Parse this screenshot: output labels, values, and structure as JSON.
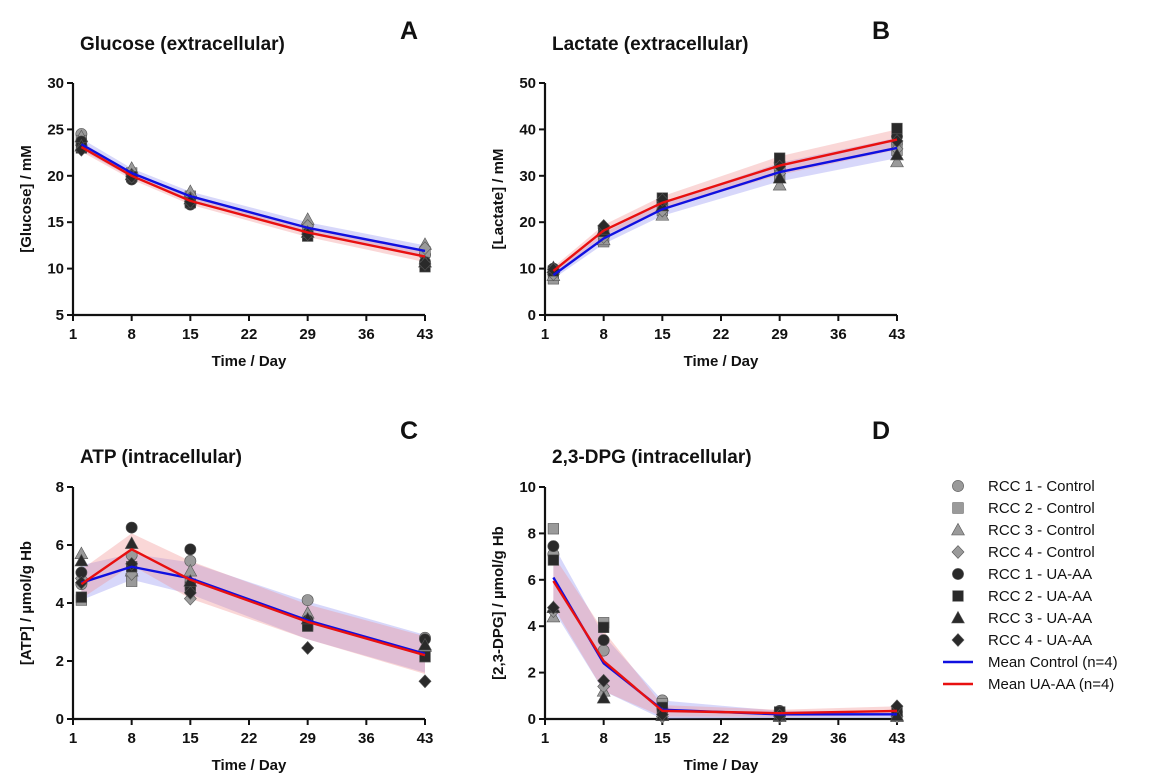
{
  "colors": {
    "control_marker": "#9a9a9a",
    "uaaa_marker": "#2a2a2a",
    "mean_control": "#1010e0",
    "mean_uaaa": "#e81010",
    "band_control": "#8c8cf2",
    "band_uaaa": "#f28c8c"
  },
  "legend": {
    "placement": "right",
    "items": [
      {
        "label": "RCC 1 - Control",
        "marker": "circle",
        "group": "control"
      },
      {
        "label": "RCC 2 - Control",
        "marker": "square",
        "group": "control"
      },
      {
        "label": "RCC 3 - Control",
        "marker": "triangle",
        "group": "control"
      },
      {
        "label": "RCC 4 - Control",
        "marker": "diamond",
        "group": "control"
      },
      {
        "label": "RCC 1 - UA-AA",
        "marker": "circle",
        "group": "uaaa"
      },
      {
        "label": "RCC 2 - UA-AA",
        "marker": "square",
        "group": "uaaa"
      },
      {
        "label": "RCC 3 - UA-AA",
        "marker": "triangle",
        "group": "uaaa"
      },
      {
        "label": "RCC 4 - UA-AA",
        "marker": "diamond",
        "group": "uaaa"
      },
      {
        "label": "Mean Control (n=4)",
        "marker": "line",
        "group": "mean_control"
      },
      {
        "label": "Mean UA-AA (n=4)",
        "marker": "line",
        "group": "mean_uaaa"
      }
    ]
  },
  "chart_data": [
    {
      "type": "line",
      "letter": "A",
      "title": "Glucose (extracellular)",
      "xlabel": "Time / Day",
      "ylabel": "[Glucose] / mM",
      "xlim": [
        1,
        43
      ],
      "xticks": [
        1,
        8,
        15,
        22,
        29,
        36,
        43
      ],
      "ylim": [
        5,
        30
      ],
      "yticks": [
        5,
        10,
        15,
        20,
        25,
        30
      ],
      "x": [
        2,
        8,
        15,
        29,
        43
      ],
      "series": [
        {
          "name": "RCC 1 - Control",
          "values": [
            24.5,
            19.7,
            17.5,
            14.0,
            11.5
          ]
        },
        {
          "name": "RCC 2 - Control",
          "values": [
            23.8,
            20.3,
            17.8,
            14.4,
            11.8
          ]
        },
        {
          "name": "RCC 3 - Control",
          "values": [
            24.2,
            20.8,
            18.3,
            15.3,
            12.6
          ]
        },
        {
          "name": "RCC 4 - Control",
          "values": [
            23.3,
            20.1,
            17.6,
            14.6,
            12.2
          ]
        },
        {
          "name": "RCC 1 - UA-AA",
          "values": [
            23.7,
            19.6,
            16.9,
            13.8,
            10.7
          ]
        },
        {
          "name": "RCC 2 - UA-AA",
          "values": [
            23.0,
            19.9,
            17.1,
            13.5,
            10.2
          ]
        },
        {
          "name": "RCC 3 - UA-AA",
          "values": [
            23.2,
            20.1,
            17.5,
            13.9,
            10.7
          ]
        },
        {
          "name": "RCC 4 - UA-AA",
          "values": [
            22.8,
            19.9,
            17.2,
            13.7,
            10.5
          ]
        },
        {
          "name": "Mean Control (n=4)",
          "values": [
            23.4,
            20.3,
            17.8,
            14.4,
            11.9
          ],
          "band": [
            0.6,
            0.5,
            0.5,
            0.6,
            0.6
          ]
        },
        {
          "name": "Mean UA-AA (n=4)",
          "values": [
            23.1,
            20.0,
            17.3,
            13.9,
            11.3
          ],
          "band": [
            0.5,
            0.4,
            0.4,
            0.5,
            0.6
          ]
        }
      ]
    },
    {
      "type": "line",
      "letter": "B",
      "title": "Lactate (extracellular)",
      "xlabel": "Time / Day",
      "ylabel": "[Lactate] / mM",
      "xlim": [
        1,
        43
      ],
      "xticks": [
        1,
        8,
        15,
        22,
        29,
        36,
        43
      ],
      "ylim": [
        0,
        50
      ],
      "yticks": [
        0,
        10,
        20,
        30,
        40,
        50
      ],
      "x": [
        2,
        8,
        15,
        29,
        43
      ],
      "series": [
        {
          "name": "RCC 1 - Control",
          "values": [
            9.0,
            17.5,
            23.8,
            31.5,
            37.0
          ]
        },
        {
          "name": "RCC 2 - Control",
          "values": [
            7.8,
            15.8,
            22.5,
            30.0,
            35.5
          ]
        },
        {
          "name": "RCC 3 - Control",
          "values": [
            8.5,
            16.2,
            21.5,
            28.0,
            33.0
          ]
        },
        {
          "name": "RCC 4 - Control",
          "values": [
            8.8,
            16.8,
            22.5,
            30.5,
            35.8
          ]
        },
        {
          "name": "RCC 1 - UA-AA",
          "values": [
            10.0,
            18.8,
            24.5,
            32.8,
            38.5
          ]
        },
        {
          "name": "RCC 2 - UA-AA",
          "values": [
            9.5,
            18.0,
            25.2,
            33.8,
            40.2
          ]
        },
        {
          "name": "RCC 3 - UA-AA",
          "values": [
            10.2,
            18.5,
            23.5,
            29.5,
            34.5
          ]
        },
        {
          "name": "RCC 4 - UA-AA",
          "values": [
            9.8,
            19.2,
            24.8,
            32.0,
            37.5
          ]
        },
        {
          "name": "Mean Control (n=4)",
          "values": [
            8.6,
            16.5,
            22.8,
            30.8,
            36.0
          ],
          "band": [
            0.8,
            1.2,
            1.4,
            2.0,
            2.2
          ]
        },
        {
          "name": "Mean UA-AA (n=4)",
          "values": [
            9.5,
            18.2,
            24.2,
            32.2,
            37.8
          ],
          "band": [
            0.8,
            1.2,
            1.4,
            2.0,
            2.2
          ]
        }
      ]
    },
    {
      "type": "line",
      "letter": "C",
      "title": "ATP (intracellular)",
      "xlabel": "Time / Day",
      "ylabel": "[ATP] /  µmol/g Hb",
      "xlim": [
        1,
        43
      ],
      "xticks": [
        1,
        8,
        15,
        22,
        29,
        36,
        43
      ],
      "ylim": [
        0,
        8
      ],
      "yticks": [
        0,
        2,
        4,
        6,
        8
      ],
      "x": [
        2,
        8,
        15,
        29,
        43
      ],
      "series": [
        {
          "name": "RCC 1 - Control",
          "values": [
            4.65,
            5.65,
            5.45,
            4.1,
            2.8
          ]
        },
        {
          "name": "RCC 2 - Control",
          "values": [
            4.1,
            4.75,
            4.65,
            3.25,
            2.15
          ]
        },
        {
          "name": "RCC 3 - Control",
          "values": [
            5.7,
            5.1,
            5.1,
            3.65,
            2.5
          ]
        },
        {
          "name": "RCC 4 - Control",
          "values": [
            4.85,
            5.0,
            4.15,
            2.45,
            1.3
          ]
        },
        {
          "name": "RCC 1 - UA-AA",
          "values": [
            5.05,
            6.6,
            5.85,
            3.4,
            2.75
          ]
        },
        {
          "name": "RCC 2 - UA-AA",
          "values": [
            4.2,
            5.25,
            4.55,
            3.2,
            2.15
          ]
        },
        {
          "name": "RCC 3 - UA-AA",
          "values": [
            5.45,
            6.05,
            4.75,
            3.45,
            2.55
          ]
        },
        {
          "name": "RCC 4 - UA-AA",
          "values": [
            4.7,
            5.35,
            4.35,
            2.45,
            1.3
          ]
        },
        {
          "name": "Mean Control (n=4)",
          "values": [
            4.7,
            5.25,
            4.85,
            3.4,
            2.25
          ],
          "band": [
            0.6,
            0.45,
            0.55,
            0.65,
            0.65
          ]
        },
        {
          "name": "Mean UA-AA (n=4)",
          "values": [
            4.65,
            5.85,
            4.8,
            3.35,
            2.2
          ],
          "band": [
            0.5,
            0.55,
            0.65,
            0.6,
            0.65
          ]
        }
      ]
    },
    {
      "type": "line",
      "letter": "D",
      "title": "2,3-DPG (intracellular)",
      "xlabel": "Time / Day",
      "ylabel": "[2,3-DPG] /  µmol/g Hb",
      "xlim": [
        1,
        43
      ],
      "xticks": [
        1,
        8,
        15,
        22,
        29,
        36,
        43
      ],
      "ylim": [
        0,
        10
      ],
      "yticks": [
        0,
        2,
        4,
        6,
        8,
        10
      ],
      "x": [
        2,
        8,
        15,
        29,
        43
      ],
      "series": [
        {
          "name": "RCC 1 - Control",
          "values": [
            7.1,
            2.95,
            0.8,
            0.25,
            0.15
          ]
        },
        {
          "name": "RCC 2 - Control",
          "values": [
            8.2,
            4.15,
            0.65,
            0.3,
            0.35
          ]
        },
        {
          "name": "RCC 3 - Control",
          "values": [
            4.4,
            1.2,
            0.15,
            0.1,
            0.1
          ]
        },
        {
          "name": "RCC 4 - Control",
          "values": [
            4.65,
            1.4,
            0.1,
            0.1,
            0.1
          ]
        },
        {
          "name": "RCC 1 - UA-AA",
          "values": [
            7.45,
            3.4,
            0.45,
            0.35,
            0.3
          ]
        },
        {
          "name": "RCC 2 - UA-AA",
          "values": [
            6.85,
            3.95,
            0.5,
            0.3,
            0.35
          ]
        },
        {
          "name": "RCC 3 - UA-AA",
          "values": [
            4.8,
            0.9,
            0.15,
            0.15,
            0.15
          ]
        },
        {
          "name": "RCC 4 - UA-AA",
          "values": [
            4.8,
            1.65,
            0.2,
            0.15,
            0.55
          ]
        },
        {
          "name": "Mean Control (n=4)",
          "values": [
            6.1,
            2.4,
            0.4,
            0.2,
            0.2
          ],
          "band": [
            1.4,
            1.2,
            0.4,
            0.15,
            0.15
          ]
        },
        {
          "name": "Mean UA-AA (n=4)",
          "values": [
            5.95,
            2.5,
            0.35,
            0.25,
            0.35
          ],
          "band": [
            1.1,
            1.3,
            0.25,
            0.15,
            0.2
          ]
        }
      ]
    }
  ]
}
